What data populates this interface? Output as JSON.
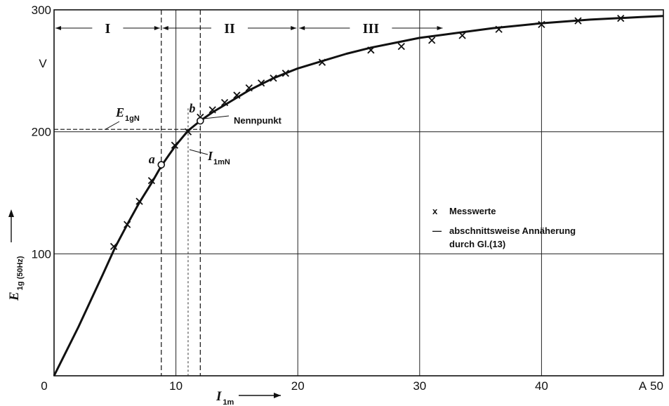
{
  "chart_data": {
    "type": "line",
    "x_ticks": [
      "0",
      "10",
      "20",
      "30",
      "40",
      "50"
    ],
    "y_ticks": [
      "100",
      "200",
      "300"
    ],
    "xlim": [
      0,
      50
    ],
    "ylim": [
      0,
      300
    ],
    "x_unit": "A",
    "y_unit": "V",
    "xlabel": {
      "main": "I",
      "sub": "1m"
    },
    "ylabel": {
      "main": "E",
      "sub": "1g",
      "sub2": "(50Hz)"
    },
    "grid": true,
    "series": [
      {
        "name": "abschnittsweise Annäherung durch Gl.(13)",
        "marker": "line",
        "x": [
          0,
          2,
          4,
          5,
          6,
          7,
          8,
          8.8,
          9.5,
          10,
          10.5,
          11,
          11.5,
          12,
          13,
          14,
          15,
          16,
          17,
          18,
          19,
          20,
          22,
          24,
          26,
          28,
          30,
          33,
          36,
          40,
          44,
          48,
          50
        ],
        "y": [
          0,
          40,
          83,
          105,
          124,
          142,
          158,
          172,
          182,
          189,
          195,
          201,
          205,
          209,
          216,
          222,
          228,
          234,
          239,
          244,
          248,
          252,
          258,
          264,
          269,
          273,
          277,
          281,
          285,
          289,
          292,
          294,
          295
        ]
      },
      {
        "name": "Messwerte",
        "marker": "x",
        "x": [
          4.9,
          6,
          7,
          8,
          9.9,
          11,
          12,
          13,
          14,
          15,
          16,
          17,
          18,
          19,
          22,
          26,
          28.5,
          31,
          33.5,
          36.5,
          40,
          43,
          46.5
        ],
        "y": [
          106,
          124,
          143,
          160,
          189,
          200,
          212,
          218,
          224,
          230,
          236,
          240,
          244,
          248,
          257,
          267,
          270,
          275,
          279,
          284,
          288,
          291,
          293
        ]
      }
    ],
    "special_points": [
      {
        "label": "a",
        "x": 8.8,
        "y": 173
      },
      {
        "label": "b",
        "x": 12,
        "y": 209
      }
    ],
    "regions": [
      {
        "label": "I",
        "from": 0,
        "to": 8.8
      },
      {
        "label": "II",
        "from": 8.8,
        "to": 20
      },
      {
        "label": "III",
        "from": 20,
        "to": 32
      }
    ],
    "annotations": {
      "nennpunkt": "Nennpunkt",
      "e1gn_main": "E",
      "e1gn_sub": "1gN",
      "i1mn_main": "I",
      "i1mn_sub": "1mN",
      "ref_y": 202,
      "ref_x": 12
    },
    "legend": {
      "position": "right",
      "measured_symbol": "x",
      "measured_label": "Messwerte",
      "line_symbol": "—",
      "line_label_1": "abschnittsweise Annäherung",
      "line_label_2": "durch Gl.(13)"
    }
  }
}
